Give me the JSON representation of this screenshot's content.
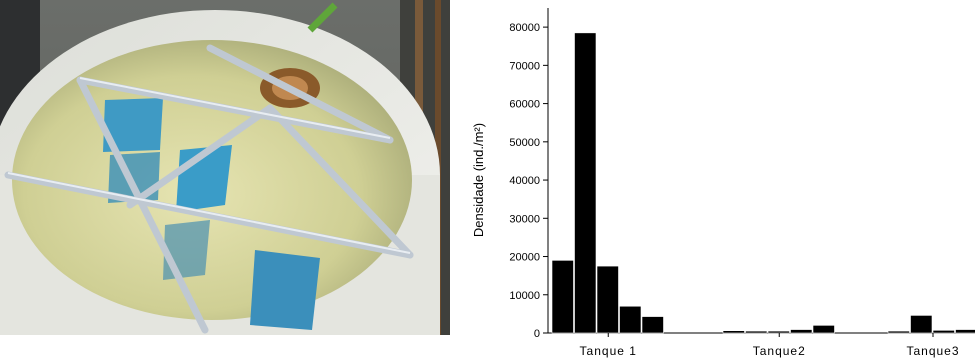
{
  "photo": {
    "icon": "tank-photo"
  },
  "chart_data": {
    "type": "bar",
    "title": "",
    "xlabel": "",
    "ylabel": "Densidade (ind./m²)",
    "ylim": [
      0,
      85000
    ],
    "yticks": [
      0,
      10000,
      20000,
      30000,
      40000,
      50000,
      60000,
      70000,
      80000
    ],
    "ytick_labels": [
      "0",
      "10000",
      "20000",
      "30000",
      "40000",
      "50000",
      "60000",
      "70000",
      "80000"
    ],
    "grid": false,
    "bar_color": "#000000",
    "groups": [
      {
        "label": "Tanque 1",
        "values": [
          19000,
          78500,
          17500,
          7000,
          4300
        ]
      },
      {
        "label": "Tanque2",
        "values": [
          600,
          500,
          500,
          900,
          2000
        ]
      },
      {
        "label": "Tanque3",
        "values": [
          500,
          4600,
          700,
          900
        ]
      }
    ]
  }
}
